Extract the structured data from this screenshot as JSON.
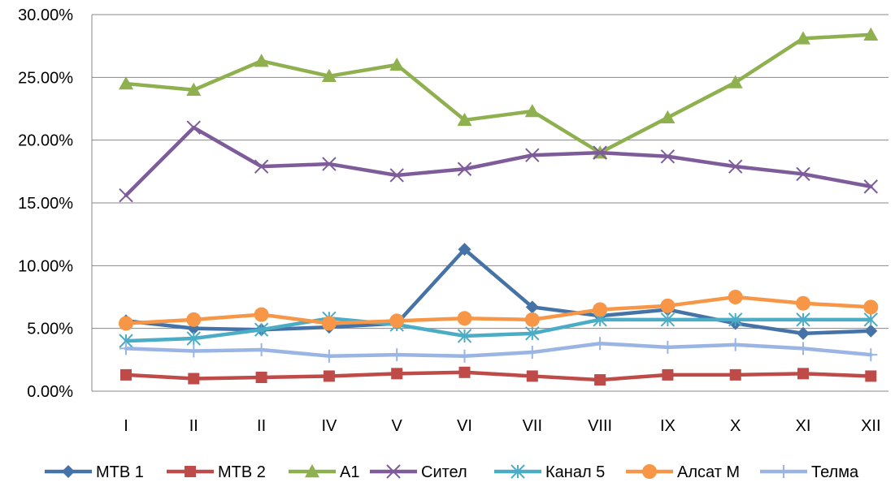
{
  "chart_data": {
    "type": "line",
    "categories": [
      "I",
      "II",
      "II",
      "IV",
      "V",
      "VI",
      "VII",
      "VIII",
      "IX",
      "X",
      "XI",
      "XII"
    ],
    "yticks": [
      "0.00%",
      "5.00%",
      "10.00%",
      "15.00%",
      "20.00%",
      "25.00%",
      "30.00%"
    ],
    "ylim": [
      0,
      30
    ],
    "ytick_step": 5,
    "grid": "y",
    "legend_position": "bottom",
    "series": [
      {
        "name": "МТВ 1",
        "color": "#4572A7",
        "marker": "diamond",
        "values": [
          5.6,
          5.0,
          4.9,
          5.1,
          5.4,
          11.3,
          6.7,
          6.0,
          6.5,
          5.4,
          4.6,
          4.8
        ]
      },
      {
        "name": "МТВ 2",
        "color": "#BE4B48",
        "marker": "square",
        "values": [
          1.3,
          1.0,
          1.1,
          1.2,
          1.4,
          1.5,
          1.2,
          0.9,
          1.3,
          1.3,
          1.4,
          1.2
        ]
      },
      {
        "name": "А1",
        "color": "#8EB04E",
        "marker": "triangle",
        "values": [
          24.5,
          24.0,
          26.3,
          25.1,
          26.0,
          21.6,
          22.3,
          19.0,
          21.8,
          24.6,
          28.1,
          28.4
        ]
      },
      {
        "name": "Сител",
        "color": "#7E5C9A",
        "marker": "x",
        "values": [
          15.6,
          21.0,
          17.9,
          18.1,
          17.2,
          17.7,
          18.8,
          19.0,
          18.7,
          17.9,
          17.3,
          16.3
        ]
      },
      {
        "name": "Канал 5",
        "color": "#4BACC6",
        "marker": "asterisk",
        "values": [
          4.0,
          4.2,
          4.9,
          5.8,
          5.3,
          4.4,
          4.6,
          5.7,
          5.7,
          5.7,
          5.7,
          5.7
        ]
      },
      {
        "name": "Алсат М",
        "color": "#F79646",
        "marker": "circle",
        "values": [
          5.4,
          5.7,
          6.1,
          5.4,
          5.6,
          5.8,
          5.7,
          6.5,
          6.8,
          7.5,
          7.0,
          6.7
        ]
      },
      {
        "name": "Телма",
        "color": "#9AB5E3",
        "marker": "plus",
        "values": [
          3.4,
          3.2,
          3.3,
          2.8,
          2.9,
          2.8,
          3.1,
          3.8,
          3.5,
          3.7,
          3.4,
          2.9
        ]
      }
    ]
  }
}
